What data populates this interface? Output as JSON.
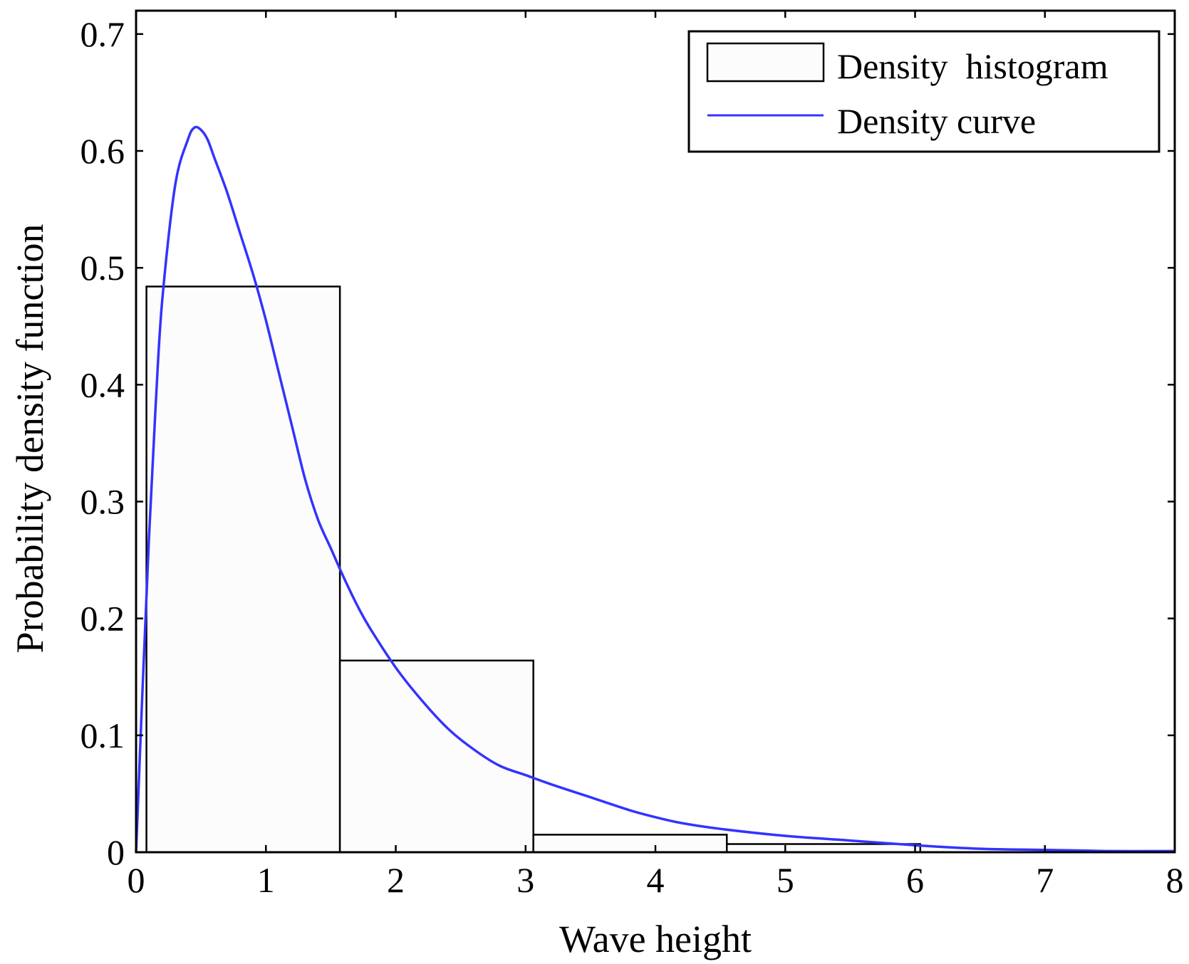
{
  "chart_data": {
    "type": "bar",
    "title": "",
    "xlabel": "Wave height",
    "ylabel": "Probability density function",
    "xlim": [
      0,
      8
    ],
    "ylim": [
      0,
      0.72
    ],
    "xticks": [
      "0",
      "1",
      "2",
      "3",
      "4",
      "5",
      "6",
      "7",
      "8"
    ],
    "yticks": [
      "0",
      "0.1",
      "0.2",
      "0.3",
      "0.4",
      "0.5",
      "0.6",
      "0.7"
    ],
    "grid": false,
    "legend_position": "top-right",
    "series": [
      {
        "name": "Density  histogram",
        "type": "histogram",
        "bins": [
          {
            "start": 0.08,
            "end": 1.57,
            "value": 0.484
          },
          {
            "start": 1.57,
            "end": 3.06,
            "value": 0.164
          },
          {
            "start": 3.06,
            "end": 4.55,
            "value": 0.015
          },
          {
            "start": 4.55,
            "end": 6.04,
            "value": 0.007
          }
        ]
      },
      {
        "name": "Density curve",
        "type": "line",
        "color": "#3333ff",
        "x": [
          0.0,
          0.05,
          0.1,
          0.15,
          0.2,
          0.3,
          0.4,
          0.45,
          0.5,
          0.55,
          0.6,
          0.7,
          0.8,
          0.9,
          1.0,
          1.1,
          1.2,
          1.3,
          1.4,
          1.5,
          1.6,
          1.7,
          1.8,
          2.0,
          2.2,
          2.4,
          2.6,
          2.8,
          3.0,
          3.2,
          3.5,
          3.8,
          4.0,
          4.2,
          4.5,
          5.0,
          5.5,
          6.0,
          6.5,
          7.0,
          7.5,
          8.0
        ],
        "y": [
          0.0,
          0.14,
          0.27,
          0.38,
          0.47,
          0.57,
          0.61,
          0.62,
          0.618,
          0.61,
          0.595,
          0.565,
          0.53,
          0.495,
          0.455,
          0.41,
          0.365,
          0.32,
          0.285,
          0.26,
          0.235,
          0.212,
          0.192,
          0.158,
          0.13,
          0.106,
          0.088,
          0.074,
          0.066,
          0.058,
          0.047,
          0.036,
          0.03,
          0.025,
          0.02,
          0.014,
          0.01,
          0.006,
          0.003,
          0.002,
          0.001,
          0.001
        ]
      }
    ]
  }
}
